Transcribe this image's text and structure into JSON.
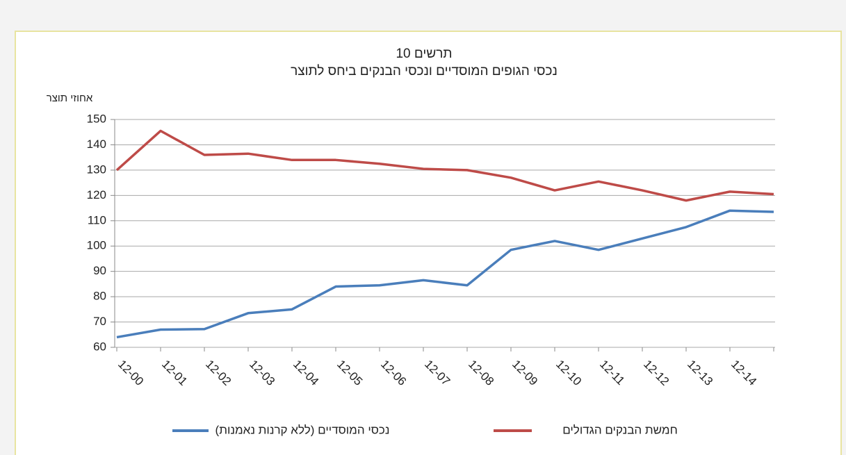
{
  "chart_data": {
    "type": "line",
    "title": "תרשים 10",
    "subtitle": "נכסי הגופים המוסדיים ונכסי הבנקים ביחס לתוצר",
    "y_label": "אחוזי תוצר",
    "categories": [
      "12-00",
      "12-01",
      "12-02",
      "12-03",
      "12-04",
      "12-05",
      "12-06",
      "12-07",
      "12-08",
      "12-09",
      "12-10",
      "12-11",
      "12-12",
      "12-13",
      "12-14",
      null
    ],
    "series": [
      {
        "name": "נכסי המוסדיים (ללא קרנות נאמנות)",
        "color": "#4a7ebb",
        "values": [
          64,
          67,
          67.2,
          73.5,
          75,
          84,
          84.5,
          86.5,
          84.5,
          98.5,
          102,
          98.5,
          103,
          107.5,
          114,
          113.5
        ]
      },
      {
        "name": "חמשת הבנקים הגדולים",
        "color": "#be4b48",
        "values": [
          130,
          145.5,
          136,
          136.5,
          134,
          134,
          132.5,
          130.5,
          130,
          127,
          122,
          125.5,
          122,
          118,
          121.5,
          120.5
        ]
      }
    ],
    "ylim": [
      60,
      150
    ],
    "yticks": [
      60,
      70,
      80,
      90,
      100,
      110,
      120,
      130,
      140,
      150
    ],
    "grid": true
  }
}
